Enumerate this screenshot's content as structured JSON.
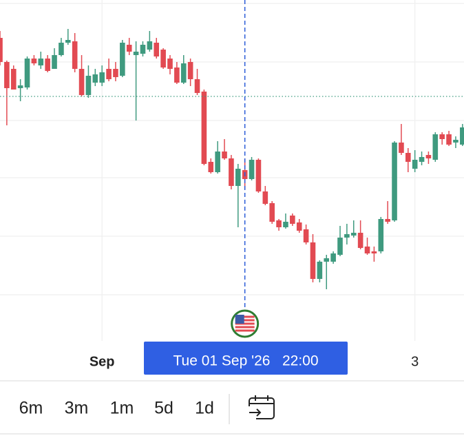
{
  "chart_data": {
    "type": "candlestick",
    "categories": [
      null,
      null,
      null,
      null,
      null,
      null,
      null,
      null,
      null,
      null,
      null,
      null,
      null,
      null,
      null,
      "Sep",
      null,
      null,
      null,
      null,
      null,
      null,
      null,
      null,
      null,
      null,
      null,
      null,
      null,
      null,
      null,
      null,
      null,
      null,
      null,
      null,
      null,
      null,
      null,
      null,
      null,
      null,
      null,
      null,
      null,
      null,
      null,
      null,
      null,
      null,
      null,
      null,
      null,
      null,
      null,
      null,
      null,
      null,
      null,
      null,
      null,
      "3",
      null,
      null,
      null,
      null,
      null,
      null,
      null
    ],
    "open": [
      445,
      410,
      400,
      372,
      373,
      415,
      405,
      415,
      400,
      420,
      438,
      440,
      400,
      362,
      380,
      380,
      400,
      400,
      390,
      435,
      420,
      422,
      428,
      438,
      428,
      415,
      402,
      380,
      410,
      385,
      367,
      265,
      250,
      280,
      270,
      230,
      253,
      240,
      268,
      222,
      205,
      180,
      170,
      187,
      177,
      167,
      148,
      95,
      120,
      120,
      130,
      155,
      158,
      162,
      142,
      135,
      135,
      182,
      180,
      293,
      278,
      255,
      265,
      275,
      268,
      305,
      305,
      293,
      290
    ],
    "high": [
      455,
      412,
      405,
      385,
      418,
      420,
      425,
      420,
      430,
      445,
      458,
      452,
      420,
      405,
      400,
      405,
      415,
      410,
      442,
      445,
      440,
      440,
      455,
      445,
      430,
      420,
      410,
      420,
      415,
      400,
      370,
      270,
      295,
      298,
      275,
      262,
      270,
      272,
      270,
      230,
      208,
      182,
      190,
      190,
      182,
      174,
      160,
      122,
      130,
      135,
      172,
      175,
      180,
      180,
      155,
      142,
      185,
      208,
      295,
      320,
      285,
      282,
      280,
      280,
      308,
      308,
      310,
      302,
      320
    ],
    "low": [
      405,
      318,
      370,
      353,
      370,
      405,
      400,
      395,
      400,
      418,
      435,
      395,
      360,
      358,
      375,
      375,
      382,
      382,
      388,
      420,
      325,
      418,
      425,
      415,
      400,
      392,
      378,
      378,
      375,
      362,
      260,
      248,
      248,
      268,
      225,
      170,
      225,
      238,
      220,
      202,
      175,
      165,
      168,
      172,
      162,
      145,
      90,
      90,
      80,
      117,
      128,
      145,
      155,
      138,
      130,
      120,
      132,
      175,
      178,
      275,
      250,
      250,
      260,
      262,
      265,
      290,
      288,
      285,
      288
    ],
    "close": [
      410,
      372,
      370,
      376,
      415,
      408,
      415,
      397,
      420,
      438,
      442,
      400,
      362,
      390,
      392,
      395,
      385,
      388,
      438,
      425,
      425,
      435,
      440,
      418,
      402,
      400,
      380,
      408,
      385,
      365,
      262,
      250,
      280,
      270,
      230,
      255,
      240,
      268,
      222,
      204,
      178,
      170,
      178,
      175,
      165,
      148,
      95,
      120,
      125,
      132,
      155,
      160,
      162,
      140,
      132,
      132,
      182,
      178,
      293,
      278,
      265,
      268,
      272,
      270,
      305,
      298,
      290,
      297,
      315
    ],
    "up_color": "#3f9a7f",
    "down_color": "#e24a52",
    "ylim": [
      5,
      500
    ],
    "grid_y": [
      495,
      410,
      325,
      242,
      157,
      72
    ],
    "grid": true,
    "price_line": 360,
    "crosshair_index": 36,
    "crosshair_label": "Tue 01 Sep '26   22:00"
  },
  "toolbar": {
    "range_buttons": [
      "6m",
      "3m",
      "1m",
      "5d",
      "1d"
    ]
  }
}
